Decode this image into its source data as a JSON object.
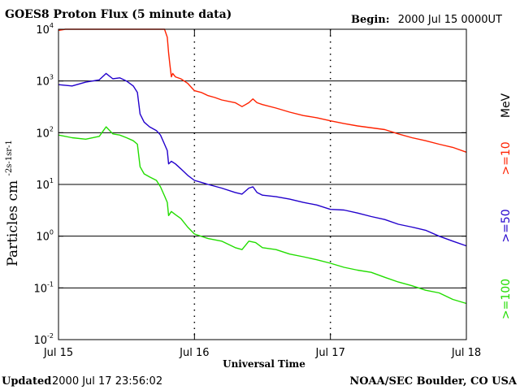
{
  "chart_data": {
    "type": "line",
    "title": "GOES8 Proton Flux (5 minute data)",
    "begin_label": "Begin:",
    "begin_value": "2000 Jul 15 0000UT",
    "ylabel": "Particles cm",
    "ylabel_units_sup": "-2s-1sr-1",
    "xlabel": "Universal Time",
    "yscale": "log",
    "ylim": [
      0.01,
      10000
    ],
    "xlim": [
      0,
      3
    ],
    "x_unit": "days since 2000 Jul 15 00:00 UT",
    "y_ticks": [
      {
        "value": 0.01,
        "base": "10",
        "exp": "-2"
      },
      {
        "value": 0.1,
        "base": "10",
        "exp": "-1"
      },
      {
        "value": 1,
        "base": "10",
        "exp": "0"
      },
      {
        "value": 10,
        "base": "10",
        "exp": "1"
      },
      {
        "value": 100,
        "base": "10",
        "exp": "2"
      },
      {
        "value": 1000,
        "base": "10",
        "exp": "3"
      },
      {
        "value": 10000,
        "base": "10",
        "exp": "4"
      }
    ],
    "x_ticks": [
      {
        "value": 0,
        "label": "Jul 15"
      },
      {
        "value": 1,
        "label": "Jul 16"
      },
      {
        "value": 2,
        "label": "Jul 17"
      },
      {
        "value": 3,
        "label": "Jul 18"
      }
    ],
    "energy_unit": "MeV",
    "series": [
      {
        "name": ">=10",
        "color": "#ff2200",
        "points": [
          [
            0,
            9500
          ],
          [
            0.05,
            10500
          ],
          [
            0.1,
            12000
          ],
          [
            0.4,
            13000
          ],
          [
            0.7,
            12500
          ],
          [
            0.78,
            11000
          ],
          [
            0.8,
            7000
          ],
          [
            0.81,
            3500
          ],
          [
            0.82,
            2000
          ],
          [
            0.83,
            1200
          ],
          [
            0.84,
            1400
          ],
          [
            0.86,
            1200
          ],
          [
            0.9,
            1100
          ],
          [
            0.95,
            900
          ],
          [
            1.0,
            650
          ],
          [
            1.05,
            600
          ],
          [
            1.1,
            520
          ],
          [
            1.15,
            480
          ],
          [
            1.2,
            430
          ],
          [
            1.3,
            380
          ],
          [
            1.35,
            320
          ],
          [
            1.4,
            380
          ],
          [
            1.43,
            450
          ],
          [
            1.46,
            380
          ],
          [
            1.5,
            350
          ],
          [
            1.6,
            300
          ],
          [
            1.7,
            250
          ],
          [
            1.8,
            215
          ],
          [
            1.9,
            195
          ],
          [
            2.0,
            170
          ],
          [
            2.1,
            150
          ],
          [
            2.2,
            135
          ],
          [
            2.4,
            115
          ],
          [
            2.5,
            95
          ],
          [
            2.6,
            80
          ],
          [
            2.7,
            70
          ],
          [
            2.8,
            60
          ],
          [
            2.9,
            52
          ],
          [
            3.0,
            42
          ]
        ]
      },
      {
        "name": ">=50",
        "color": "#2200cc",
        "points": [
          [
            0,
            850
          ],
          [
            0.1,
            800
          ],
          [
            0.2,
            950
          ],
          [
            0.3,
            1050
          ],
          [
            0.35,
            1400
          ],
          [
            0.4,
            1100
          ],
          [
            0.45,
            1150
          ],
          [
            0.5,
            1000
          ],
          [
            0.55,
            800
          ],
          [
            0.58,
            600
          ],
          [
            0.6,
            230
          ],
          [
            0.63,
            160
          ],
          [
            0.67,
            130
          ],
          [
            0.72,
            110
          ],
          [
            0.75,
            90
          ],
          [
            0.78,
            60
          ],
          [
            0.8,
            45
          ],
          [
            0.81,
            25
          ],
          [
            0.83,
            28
          ],
          [
            0.86,
            25
          ],
          [
            0.9,
            20
          ],
          [
            0.95,
            15
          ],
          [
            1.0,
            12
          ],
          [
            1.05,
            11
          ],
          [
            1.1,
            10
          ],
          [
            1.2,
            8.5
          ],
          [
            1.3,
            7
          ],
          [
            1.35,
            6.5
          ],
          [
            1.4,
            8.5
          ],
          [
            1.43,
            9
          ],
          [
            1.46,
            7
          ],
          [
            1.5,
            6.2
          ],
          [
            1.6,
            5.8
          ],
          [
            1.7,
            5.2
          ],
          [
            1.8,
            4.5
          ],
          [
            1.9,
            4
          ],
          [
            2.0,
            3.3
          ],
          [
            2.1,
            3.2
          ],
          [
            2.2,
            2.8
          ],
          [
            2.3,
            2.4
          ],
          [
            2.4,
            2.1
          ],
          [
            2.5,
            1.7
          ],
          [
            2.6,
            1.5
          ],
          [
            2.7,
            1.3
          ],
          [
            2.8,
            1.0
          ],
          [
            2.9,
            0.8
          ],
          [
            3.0,
            0.65
          ]
        ]
      },
      {
        "name": ">=100",
        "color": "#22dd00",
        "points": [
          [
            0,
            90
          ],
          [
            0.1,
            80
          ],
          [
            0.2,
            75
          ],
          [
            0.3,
            85
          ],
          [
            0.35,
            130
          ],
          [
            0.4,
            95
          ],
          [
            0.45,
            90
          ],
          [
            0.5,
            80
          ],
          [
            0.55,
            70
          ],
          [
            0.58,
            60
          ],
          [
            0.6,
            22
          ],
          [
            0.63,
            16
          ],
          [
            0.67,
            14
          ],
          [
            0.72,
            12
          ],
          [
            0.75,
            9
          ],
          [
            0.78,
            6
          ],
          [
            0.8,
            4.5
          ],
          [
            0.81,
            2.5
          ],
          [
            0.83,
            3
          ],
          [
            0.86,
            2.6
          ],
          [
            0.9,
            2.2
          ],
          [
            0.95,
            1.5
          ],
          [
            1.0,
            1.1
          ],
          [
            1.1,
            0.9
          ],
          [
            1.2,
            0.8
          ],
          [
            1.3,
            0.6
          ],
          [
            1.35,
            0.55
          ],
          [
            1.4,
            0.8
          ],
          [
            1.45,
            0.75
          ],
          [
            1.5,
            0.6
          ],
          [
            1.6,
            0.55
          ],
          [
            1.7,
            0.45
          ],
          [
            1.8,
            0.4
          ],
          [
            1.9,
            0.35
          ],
          [
            2.0,
            0.3
          ],
          [
            2.1,
            0.25
          ],
          [
            2.2,
            0.22
          ],
          [
            2.3,
            0.2
          ],
          [
            2.4,
            0.16
          ],
          [
            2.5,
            0.13
          ],
          [
            2.6,
            0.11
          ],
          [
            2.7,
            0.09
          ],
          [
            2.8,
            0.08
          ],
          [
            2.9,
            0.06
          ],
          [
            3.0,
            0.05
          ]
        ]
      }
    ]
  },
  "footer": {
    "updated_label": "Updated",
    "updated_value": "2000 Jul 17 23:56:02",
    "credit": "NOAA/SEC Boulder, CO USA"
  }
}
